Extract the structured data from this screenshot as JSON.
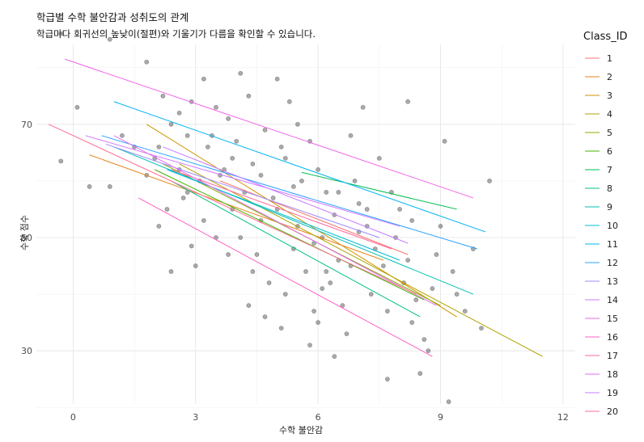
{
  "chart_data": {
    "type": "scatter",
    "title": "학급별 수학 불안감과 성취도의 관계",
    "subtitle": "학급마다 회귀선의 높낮이(절편)와 기울기가 다름을 확인할 수 있습니다.",
    "xlabel": "수학 불안감",
    "ylabel": "수학 점수",
    "xlim": [
      -0.9,
      12.3
    ],
    "ylim": [
      20.6,
      84.1
    ],
    "x_ticks": [
      0,
      3,
      6,
      9,
      12
    ],
    "y_ticks": [
      30,
      50,
      70
    ],
    "grid": true,
    "legend_title": "Class_ID",
    "legend_position": "right",
    "point_color": "#555555",
    "lines": [
      {
        "name": "1",
        "color": "#F8766D",
        "x": [
          3.6,
          8.2
        ],
        "y": [
          60.0,
          47.0
        ]
      },
      {
        "name": "2",
        "color": "#E7851E",
        "x": [
          0.4,
          7.6
        ],
        "y": [
          64.6,
          46.0
        ]
      },
      {
        "name": "3",
        "color": "#D09400",
        "x": [
          1.8,
          9.4
        ],
        "y": [
          70.0,
          36.0
        ]
      },
      {
        "name": "4",
        "color": "#B2A100",
        "x": [
          2.6,
          11.5
        ],
        "y": [
          63.0,
          29.0
        ]
      },
      {
        "name": "5",
        "color": "#89AC00",
        "x": [
          2.2,
          9.0
        ],
        "y": [
          63.0,
          38.0
        ]
      },
      {
        "name": "6",
        "color": "#45B500",
        "x": [
          2.0,
          8.6
        ],
        "y": [
          62.0,
          39.0
        ]
      },
      {
        "name": "7",
        "color": "#00BC51",
        "x": [
          5.6,
          9.4
        ],
        "y": [
          61.5,
          55.0
        ]
      },
      {
        "name": "8",
        "color": "#00C087",
        "x": [
          2.4,
          8.5
        ],
        "y": [
          60.0,
          36.0
        ]
      },
      {
        "name": "9",
        "color": "#00C0B2",
        "x": [
          1.0,
          9.8
        ],
        "y": [
          66.0,
          40.0
        ]
      },
      {
        "name": "10",
        "color": "#00BCD6",
        "x": [
          2.3,
          8.0
        ],
        "y": [
          62.0,
          46.0
        ]
      },
      {
        "name": "11",
        "color": "#00B3F2",
        "x": [
          1.0,
          10.1
        ],
        "y": [
          74.0,
          51.0
        ]
      },
      {
        "name": "12",
        "color": "#29A3FF",
        "x": [
          0.7,
          9.9
        ],
        "y": [
          68.0,
          48.0
        ]
      },
      {
        "name": "13",
        "color": "#9C8DFF",
        "x": [
          0.8,
          7.5
        ],
        "y": [
          66.5,
          50.0
        ]
      },
      {
        "name": "14",
        "color": "#D277FF",
        "x": [
          0.3,
          8.0
        ],
        "y": [
          68.0,
          52.0
        ]
      },
      {
        "name": "15",
        "color": "#F166E8",
        "x": [
          -0.2,
          9.8
        ],
        "y": [
          81.5,
          57.0
        ]
      },
      {
        "name": "16",
        "color": "#FF61C7",
        "x": [
          1.6,
          8.8
        ],
        "y": [
          57.0,
          29.0
        ]
      },
      {
        "name": "17",
        "color": "#FF689E",
        "x": [
          2.4,
          7.8
        ],
        "y": [
          62.0,
          48.0
        ]
      },
      {
        "name": "18",
        "color": "#E76BF3",
        "x": [
          1.0,
          8.9
        ],
        "y": [
          68.0,
          38.0
        ]
      },
      {
        "name": "19",
        "color": "#C77CFF",
        "x": [
          2.2,
          8.2
        ],
        "y": [
          66.0,
          49.0
        ]
      },
      {
        "name": "20",
        "color": "#FF6C91",
        "x": [
          -0.6,
          8.4
        ],
        "y": [
          70.0,
          40.0
        ]
      }
    ],
    "points": [
      [
        -0.3,
        86
      ],
      [
        0.9,
        85
      ],
      [
        -0.3,
        63.5
      ],
      [
        0.1,
        73
      ],
      [
        0.4,
        59
      ],
      [
        0.9,
        59
      ],
      [
        1.5,
        66
      ],
      [
        1.8,
        81
      ],
      [
        2.0,
        64
      ],
      [
        2.2,
        75
      ],
      [
        2.4,
        70
      ],
      [
        2.6,
        72
      ],
      [
        2.8,
        68
      ],
      [
        2.9,
        74
      ],
      [
        2.6,
        62
      ],
      [
        2.3,
        55
      ],
      [
        2.4,
        44
      ],
      [
        2.1,
        52
      ],
      [
        2.9,
        48.5
      ],
      [
        2.7,
        57
      ],
      [
        3.1,
        60
      ],
      [
        3.3,
        66
      ],
      [
        3.5,
        73
      ],
      [
        3.2,
        78
      ],
      [
        3.7,
        62
      ],
      [
        3.9,
        55
      ],
      [
        3.5,
        50
      ],
      [
        3.0,
        45
      ],
      [
        3.4,
        68
      ],
      [
        3.8,
        71
      ],
      [
        4.1,
        79
      ],
      [
        4.3,
        75
      ],
      [
        4.0,
        67
      ],
      [
        4.4,
        63
      ],
      [
        4.2,
        58
      ],
      [
        4.6,
        53
      ],
      [
        4.5,
        47
      ],
      [
        4.8,
        42
      ],
      [
        4.7,
        36
      ],
      [
        4.1,
        50
      ],
      [
        5.0,
        78
      ],
      [
        5.3,
        74
      ],
      [
        5.5,
        70
      ],
      [
        5.2,
        64
      ],
      [
        5.6,
        60
      ],
      [
        5.0,
        55
      ],
      [
        5.4,
        48
      ],
      [
        5.7,
        44
      ],
      [
        5.2,
        40
      ],
      [
        5.9,
        37
      ],
      [
        5.1,
        34
      ],
      [
        5.8,
        67
      ],
      [
        6.0,
        62
      ],
      [
        6.2,
        58
      ],
      [
        6.4,
        54
      ],
      [
        6.1,
        50
      ],
      [
        6.5,
        46
      ],
      [
        6.3,
        42
      ],
      [
        6.6,
        38
      ],
      [
        6.0,
        35
      ],
      [
        6.7,
        33
      ],
      [
        6.4,
        29
      ],
      [
        6.9,
        60
      ],
      [
        7.0,
        56
      ],
      [
        7.2,
        52
      ],
      [
        6.8,
        68
      ],
      [
        7.4,
        48
      ],
      [
        7.6,
        45
      ],
      [
        7.3,
        40
      ],
      [
        7.7,
        37
      ],
      [
        7.1,
        73
      ],
      [
        7.5,
        64
      ],
      [
        7.8,
        58
      ],
      [
        8.0,
        55
      ],
      [
        7.9,
        50
      ],
      [
        8.2,
        46
      ],
      [
        8.1,
        42
      ],
      [
        8.4,
        39
      ],
      [
        8.3,
        35
      ],
      [
        8.6,
        32
      ],
      [
        8.2,
        74
      ],
      [
        8.5,
        26
      ],
      [
        8.7,
        30
      ],
      [
        8.8,
        41
      ],
      [
        8.9,
        47
      ],
      [
        9.0,
        52
      ],
      [
        9.1,
        67
      ],
      [
        9.3,
        44
      ],
      [
        9.4,
        40
      ],
      [
        9.6,
        37
      ],
      [
        9.2,
        21
      ],
      [
        9.8,
        48
      ],
      [
        10.0,
        34
      ],
      [
        10.2,
        60
      ],
      [
        7.7,
        25
      ],
      [
        6.2,
        44
      ],
      [
        5.5,
        52
      ],
      [
        4.9,
        57
      ],
      [
        4.3,
        38
      ],
      [
        3.6,
        61
      ],
      [
        3.9,
        64
      ],
      [
        4.7,
        69
      ],
      [
        5.1,
        66
      ],
      [
        5.9,
        49
      ],
      [
        6.8,
        45
      ],
      [
        7.2,
        55
      ],
      [
        3.2,
        53
      ],
      [
        2.8,
        58
      ],
      [
        1.2,
        68
      ],
      [
        1.8,
        61
      ],
      [
        2.1,
        66
      ],
      [
        4.6,
        61
      ],
      [
        5.4,
        59
      ],
      [
        6.5,
        58
      ],
      [
        7.0,
        51
      ],
      [
        8.3,
        53
      ],
      [
        6.1,
        41
      ],
      [
        5.8,
        31
      ],
      [
        4.4,
        44
      ],
      [
        3.8,
        47
      ]
    ]
  }
}
